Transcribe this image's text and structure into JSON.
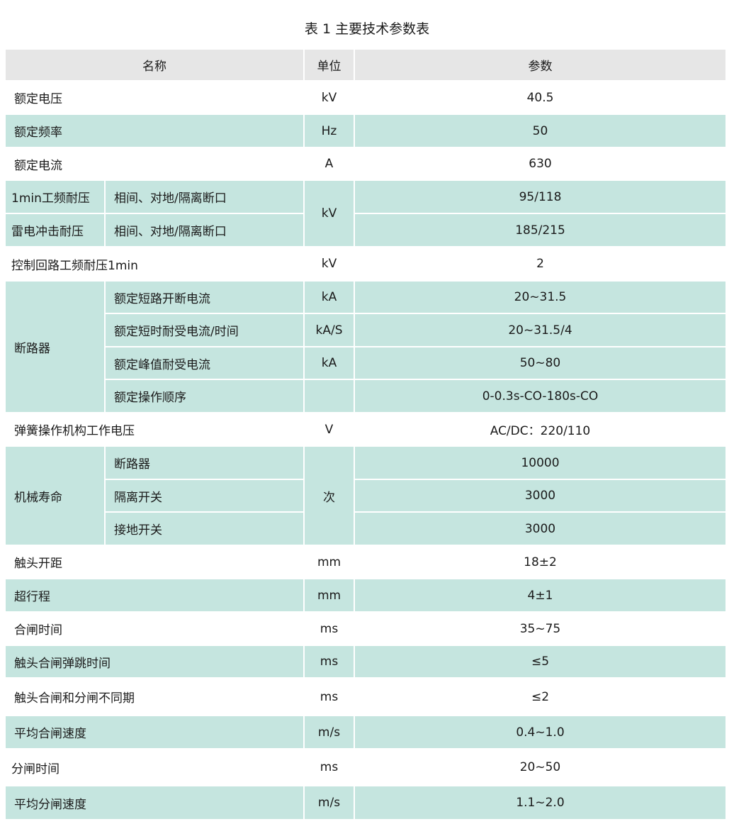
{
  "title": "表 1 主要技术参数表",
  "header": {
    "name": "名称",
    "unit": "单位",
    "param": "参数"
  },
  "rows": [
    {
      "name": "额定电压",
      "unit": "kV",
      "value": "40.5"
    },
    {
      "name": "额定频率",
      "unit": "Hz",
      "value": "50"
    },
    {
      "name": "额定电流",
      "unit": "A",
      "value": "630"
    },
    {
      "name": "1min工频耐压",
      "sub": "相间、对地/隔离断口",
      "unit": "kV",
      "value": "95/118"
    },
    {
      "name": "雷电冲击耐压",
      "sub": "相间、对地/隔离断口",
      "value": "185/215"
    },
    {
      "name": "控制回路工频耐压1min",
      "unit": "kV",
      "value": "2"
    },
    {
      "name": "断路器",
      "sub": "额定短路开断电流",
      "unit": "kA",
      "value": "20~31.5"
    },
    {
      "sub": "额定短时耐受电流/时间",
      "unit": "kA/S",
      "value": "20~31.5/4"
    },
    {
      "sub": "额定峰值耐受电流",
      "unit": "kA",
      "value": "50~80"
    },
    {
      "sub": "额定操作顺序",
      "unit": "",
      "value": "0-0.3s-CO-180s-CO"
    },
    {
      "name": "弹簧操作机构工作电压",
      "unit": "V",
      "value": "AC/DC：220/110"
    },
    {
      "name": "机械寿命",
      "sub": "断路器",
      "unit": "次",
      "value": "10000"
    },
    {
      "sub": "隔离开关",
      "value": "3000"
    },
    {
      "sub": "接地开关",
      "value": "3000"
    },
    {
      "name": "触头开距",
      "unit": "mm",
      "value": "18±2"
    },
    {
      "name": "超行程",
      "unit": "mm",
      "value": "4±1"
    },
    {
      "name": "合闸时间",
      "unit": "ms",
      "value": "35~75"
    },
    {
      "name": "触头合闸弹跳时间",
      "unit": "ms",
      "value": "≤5"
    },
    {
      "name": "触头合闸和分闸不同期",
      "unit": "ms",
      "value": "≤2"
    },
    {
      "name": "平均合闸速度",
      "unit": "m/s",
      "value": "0.4~1.0"
    },
    {
      "name": "分闸时间",
      "unit": "ms",
      "value": "20~50"
    },
    {
      "name": "平均分闸速度",
      "unit": "m/s",
      "value": "1.1~2.0"
    }
  ],
  "colors": {
    "header": "#e6e6e6",
    "band": "#c5e5df"
  }
}
